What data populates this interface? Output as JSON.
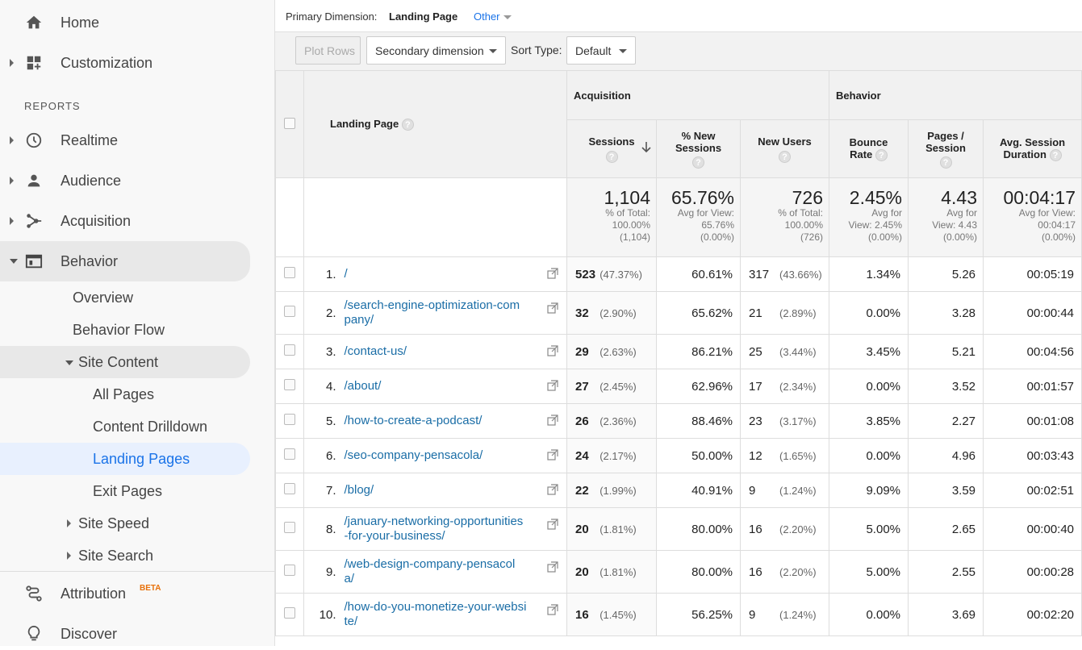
{
  "sidebar": {
    "home": "Home",
    "customization": "Customization",
    "reports": "REPORTS",
    "realtime": "Realtime",
    "audience": "Audience",
    "acquisition": "Acquisition",
    "behavior": "Behavior",
    "overview": "Overview",
    "behavior_flow": "Behavior Flow",
    "site_content": "Site Content",
    "all_pages": "All Pages",
    "content_drilldown": "Content Drilldown",
    "landing_pages": "Landing Pages",
    "exit_pages": "Exit Pages",
    "site_speed": "Site Speed",
    "site_search": "Site Search",
    "attribution": "Attribution",
    "beta": "BETA",
    "discover": "Discover"
  },
  "header": {
    "primary_dim_label": "Primary Dimension:",
    "primary_dim_value": "Landing Page",
    "other": "Other"
  },
  "toolbar": {
    "plot_rows": "Plot Rows",
    "secondary": "Secondary dimension",
    "sort_type_label": "Sort Type:",
    "sort_type_value": "Default"
  },
  "table": {
    "col_landing": "Landing Page",
    "grp_acq": "Acquisition",
    "grp_beh": "Behavior",
    "h_sessions": "Sessions",
    "h_new_sessions_1": "% New",
    "h_new_sessions_2": "Sessions",
    "h_new_users": "New Users",
    "h_bounce_1": "Bounce",
    "h_bounce_2": "Rate",
    "h_pps_1": "Pages /",
    "h_pps_2": "Session",
    "h_dur_1": "Avg. Session",
    "h_dur_2": "Duration",
    "help": "?",
    "totals": {
      "sessions": "1,104",
      "sessions_s1": "% of Total:",
      "sessions_s2": "100.00%",
      "sessions_s3": "(1,104)",
      "new_sess": "65.76%",
      "new_sess_s1": "Avg for View:",
      "new_sess_s2": "65.76%",
      "new_sess_s3": "(0.00%)",
      "new_users": "726",
      "new_users_s1": "% of Total:",
      "new_users_s2": "100.00%",
      "new_users_s3": "(726)",
      "bounce": "2.45%",
      "bounce_s1": "Avg for",
      "bounce_s2": "View: 2.45%",
      "bounce_s3": "(0.00%)",
      "pps": "4.43",
      "pps_s1": "Avg for",
      "pps_s2": "View: 4.43",
      "pps_s3": "(0.00%)",
      "dur": "00:04:17",
      "dur_s1": "Avg for View:",
      "dur_s2": "00:04:17",
      "dur_s3": "(0.00%)"
    },
    "rows": [
      {
        "idx": "1.",
        "lp1": "/",
        "lp2": "",
        "s": "523",
        "sp": "(47.37%)",
        "ns": "60.61%",
        "nu": "317",
        "nup": "(43.66%)",
        "br": "1.34%",
        "pps": "5.26",
        "d": "00:05:19"
      },
      {
        "idx": "2.",
        "lp1": "/search-engine-optimization-com",
        "lp2": "pany/",
        "s": "32",
        "sp": "(2.90%)",
        "ns": "65.62%",
        "nu": "21",
        "nup": "(2.89%)",
        "br": "0.00%",
        "pps": "3.28",
        "d": "00:00:44"
      },
      {
        "idx": "3.",
        "lp1": "/contact-us/",
        "lp2": "",
        "s": "29",
        "sp": "(2.63%)",
        "ns": "86.21%",
        "nu": "25",
        "nup": "(3.44%)",
        "br": "3.45%",
        "pps": "5.21",
        "d": "00:04:56"
      },
      {
        "idx": "4.",
        "lp1": "/about/",
        "lp2": "",
        "s": "27",
        "sp": "(2.45%)",
        "ns": "62.96%",
        "nu": "17",
        "nup": "(2.34%)",
        "br": "0.00%",
        "pps": "3.52",
        "d": "00:01:57"
      },
      {
        "idx": "5.",
        "lp1": "/how-to-create-a-podcast/",
        "lp2": "",
        "s": "26",
        "sp": "(2.36%)",
        "ns": "88.46%",
        "nu": "23",
        "nup": "(3.17%)",
        "br": "3.85%",
        "pps": "2.27",
        "d": "00:01:08"
      },
      {
        "idx": "6.",
        "lp1": "/seo-company-pensacola/",
        "lp2": "",
        "s": "24",
        "sp": "(2.17%)",
        "ns": "50.00%",
        "nu": "12",
        "nup": "(1.65%)",
        "br": "0.00%",
        "pps": "4.96",
        "d": "00:03:43"
      },
      {
        "idx": "7.",
        "lp1": "/blog/",
        "lp2": "",
        "s": "22",
        "sp": "(1.99%)",
        "ns": "40.91%",
        "nu": "9",
        "nup": "(1.24%)",
        "br": "9.09%",
        "pps": "3.59",
        "d": "00:02:51"
      },
      {
        "idx": "8.",
        "lp1": "/january-networking-opportunities",
        "lp2": "-for-your-business/",
        "s": "20",
        "sp": "(1.81%)",
        "ns": "80.00%",
        "nu": "16",
        "nup": "(2.20%)",
        "br": "5.00%",
        "pps": "2.65",
        "d": "00:00:40"
      },
      {
        "idx": "9.",
        "lp1": "/web-design-company-pensacol",
        "lp2": "a/",
        "s": "20",
        "sp": "(1.81%)",
        "ns": "80.00%",
        "nu": "16",
        "nup": "(2.20%)",
        "br": "5.00%",
        "pps": "2.55",
        "d": "00:00:28"
      },
      {
        "idx": "10.",
        "lp1": "/how-do-you-monetize-your-websi",
        "lp2": "te/",
        "s": "16",
        "sp": "(1.45%)",
        "ns": "56.25%",
        "nu": "9",
        "nup": "(1.24%)",
        "br": "0.00%",
        "pps": "3.69",
        "d": "00:02:20"
      }
    ]
  }
}
